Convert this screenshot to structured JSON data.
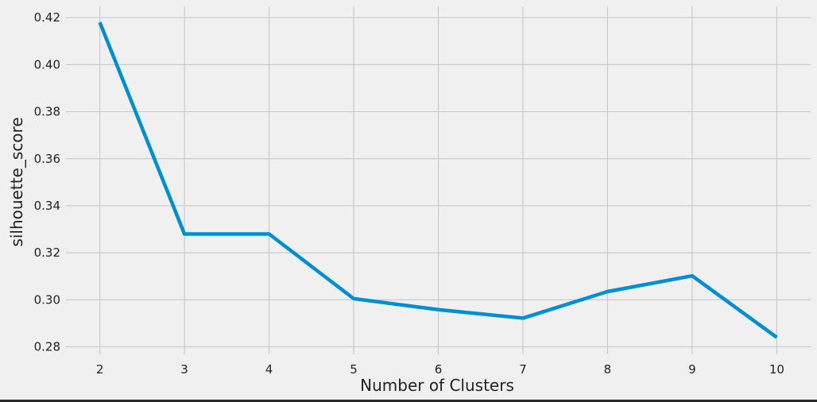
{
  "chart_data": {
    "type": "line",
    "title": "",
    "xlabel": "Number of Clusters",
    "ylabel": "silhouette_score",
    "x": [
      2,
      3,
      4,
      5,
      6,
      7,
      8,
      9,
      10
    ],
    "series": [
      {
        "values": [
          0.418,
          0.328,
          0.328,
          0.3005,
          0.2958,
          0.2922,
          0.3035,
          0.3102,
          0.284
        ]
      }
    ],
    "x_ticks": [
      "2",
      "3",
      "4",
      "5",
      "6",
      "7",
      "8",
      "9",
      "10"
    ],
    "y_ticks": [
      "0.28",
      "0.30",
      "0.32",
      "0.34",
      "0.36",
      "0.38",
      "0.40",
      "0.42"
    ],
    "xlim": [
      1.6,
      10.4
    ],
    "ylim": [
      0.2768,
      0.4248
    ],
    "grid": true,
    "legend": "none",
    "colors": {
      "background": "#f0f0f0",
      "grid": "#cbcbcb",
      "line": "#008fd5",
      "text": "#222222"
    }
  }
}
